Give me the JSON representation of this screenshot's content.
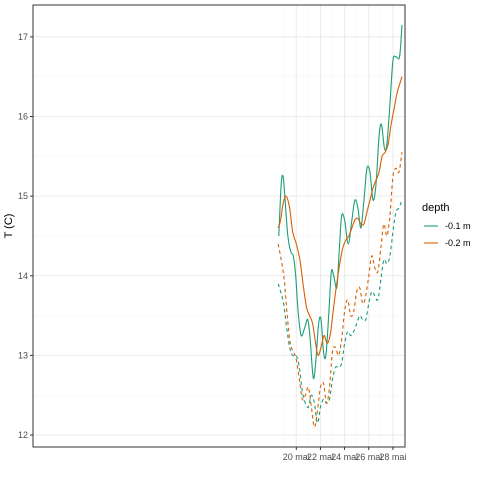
{
  "chart_data": {
    "type": "line",
    "xlabel": "",
    "ylabel": "T (C)",
    "xlim": [
      -1.8,
      29.0
    ],
    "ylim": [
      11.85,
      17.4
    ],
    "x_ticks": [
      {
        "value": 20,
        "label": "20 mai"
      },
      {
        "value": 22,
        "label": "22 mai"
      },
      {
        "value": 24,
        "label": "24 mai"
      },
      {
        "value": 26,
        "label": "26 mai"
      },
      {
        "value": 28,
        "label": "28 mai"
      }
    ],
    "y_ticks": [
      12,
      13,
      14,
      15,
      16,
      17
    ],
    "grid": true,
    "legend": {
      "title": "depth",
      "position": "right",
      "entries": [
        {
          "label": "-0.1 m",
          "color": "#1b9e77"
        },
        {
          "label": "-0.2 m",
          "color": "#d95f02"
        }
      ]
    },
    "series": [
      {
        "legend": "-0.1 m",
        "linetype": "solid",
        "color": "#1b9e77",
        "x": [
          18.55,
          18.75,
          18.9,
          19.05,
          19.3,
          19.55,
          19.75,
          19.95,
          20.15,
          20.4,
          20.7,
          20.95,
          21.15,
          21.4,
          21.6,
          21.85,
          22.05,
          22.25,
          22.45,
          22.7,
          22.9,
          23.1,
          23.35,
          23.55,
          23.75,
          24.0,
          24.3,
          24.6,
          24.85,
          25.1,
          25.35,
          25.6,
          25.85,
          26.1,
          26.35,
          26.6,
          26.85,
          27.05,
          27.3,
          27.5,
          27.75,
          28.0,
          28.25,
          28.55,
          28.75
        ],
        "y": [
          14.5,
          15.15,
          15.25,
          15.0,
          14.5,
          14.3,
          14.25,
          14.0,
          13.55,
          13.25,
          13.35,
          13.45,
          13.2,
          12.72,
          12.9,
          13.4,
          13.45,
          13.05,
          13.0,
          13.55,
          14.05,
          14.0,
          13.85,
          14.3,
          14.75,
          14.7,
          14.4,
          14.7,
          14.95,
          14.85,
          14.6,
          14.95,
          15.35,
          15.3,
          14.95,
          15.15,
          15.75,
          15.9,
          15.6,
          15.65,
          16.15,
          16.7,
          16.75,
          16.75,
          17.15
        ]
      },
      {
        "legend": "-0.2 m",
        "linetype": "solid",
        "color": "#d95f02",
        "x": [
          18.5,
          18.7,
          18.9,
          19.15,
          19.45,
          19.7,
          20.0,
          20.3,
          20.6,
          20.85,
          21.1,
          21.35,
          21.6,
          21.8,
          22.05,
          22.3,
          22.55,
          22.8,
          23.05,
          23.3,
          23.6,
          23.85,
          24.1,
          24.35,
          24.6,
          24.85,
          25.1,
          25.35,
          25.6,
          25.85,
          26.1,
          26.35,
          26.6,
          26.85,
          27.1,
          27.35,
          27.6,
          27.85,
          28.1,
          28.35,
          28.55,
          28.75
        ],
        "y": [
          14.6,
          14.7,
          14.9,
          15.0,
          14.85,
          14.55,
          14.4,
          14.2,
          13.85,
          13.6,
          13.5,
          13.4,
          13.15,
          13.0,
          13.1,
          13.25,
          13.15,
          13.25,
          13.55,
          13.85,
          14.15,
          14.35,
          14.45,
          14.5,
          14.6,
          14.7,
          14.72,
          14.65,
          14.65,
          14.8,
          14.95,
          15.1,
          15.2,
          15.3,
          15.5,
          15.55,
          15.65,
          15.9,
          16.1,
          16.3,
          16.4,
          16.5
        ]
      },
      {
        "legend": "-0.1 m",
        "linetype": "dashed",
        "color": "#1b9e77",
        "x": [
          18.5,
          18.7,
          18.95,
          19.2,
          19.45,
          19.7,
          20.0,
          20.25,
          20.5,
          20.75,
          21.0,
          21.25,
          21.5,
          21.75,
          22.0,
          22.25,
          22.5,
          22.75,
          23.0,
          23.25,
          23.5,
          23.75,
          24.0,
          24.25,
          24.5,
          24.75,
          25.0,
          25.25,
          25.5,
          25.75,
          26.0,
          26.25,
          26.5,
          26.75,
          27.0,
          27.25,
          27.5,
          27.75,
          28.0,
          28.25,
          28.5,
          28.75
        ],
        "y": [
          13.9,
          13.8,
          13.65,
          13.35,
          13.1,
          13.0,
          13.0,
          12.85,
          12.55,
          12.4,
          12.35,
          12.5,
          12.4,
          12.15,
          12.35,
          12.45,
          12.4,
          12.45,
          12.7,
          12.85,
          12.85,
          12.9,
          13.15,
          13.3,
          13.25,
          13.3,
          13.4,
          13.5,
          13.45,
          13.45,
          13.65,
          13.8,
          13.75,
          13.7,
          13.95,
          14.2,
          14.15,
          14.25,
          14.55,
          14.8,
          14.85,
          14.95
        ]
      },
      {
        "legend": "-0.2 m",
        "linetype": "dashed",
        "color": "#d95f02",
        "x": [
          18.5,
          18.75,
          19.0,
          19.25,
          19.5,
          19.75,
          20.0,
          20.25,
          20.5,
          20.75,
          21.0,
          21.25,
          21.5,
          21.75,
          22.0,
          22.25,
          22.5,
          22.75,
          23.0,
          23.25,
          23.5,
          23.75,
          24.0,
          24.25,
          24.5,
          24.75,
          25.0,
          25.25,
          25.5,
          25.75,
          26.0,
          26.25,
          26.5,
          26.75,
          27.0,
          27.25,
          27.5,
          27.75,
          28.0,
          28.25,
          28.5,
          28.75
        ],
        "y": [
          14.4,
          14.2,
          13.95,
          13.5,
          13.15,
          13.05,
          12.95,
          12.7,
          12.45,
          12.5,
          12.6,
          12.35,
          12.1,
          12.3,
          12.6,
          12.65,
          12.4,
          12.6,
          13.05,
          13.1,
          13.0,
          13.2,
          13.55,
          13.7,
          13.5,
          13.55,
          13.8,
          13.85,
          13.65,
          13.75,
          14.0,
          14.25,
          14.1,
          14.05,
          14.35,
          14.65,
          14.5,
          14.75,
          15.25,
          15.35,
          15.3,
          15.55
        ]
      }
    ]
  }
}
